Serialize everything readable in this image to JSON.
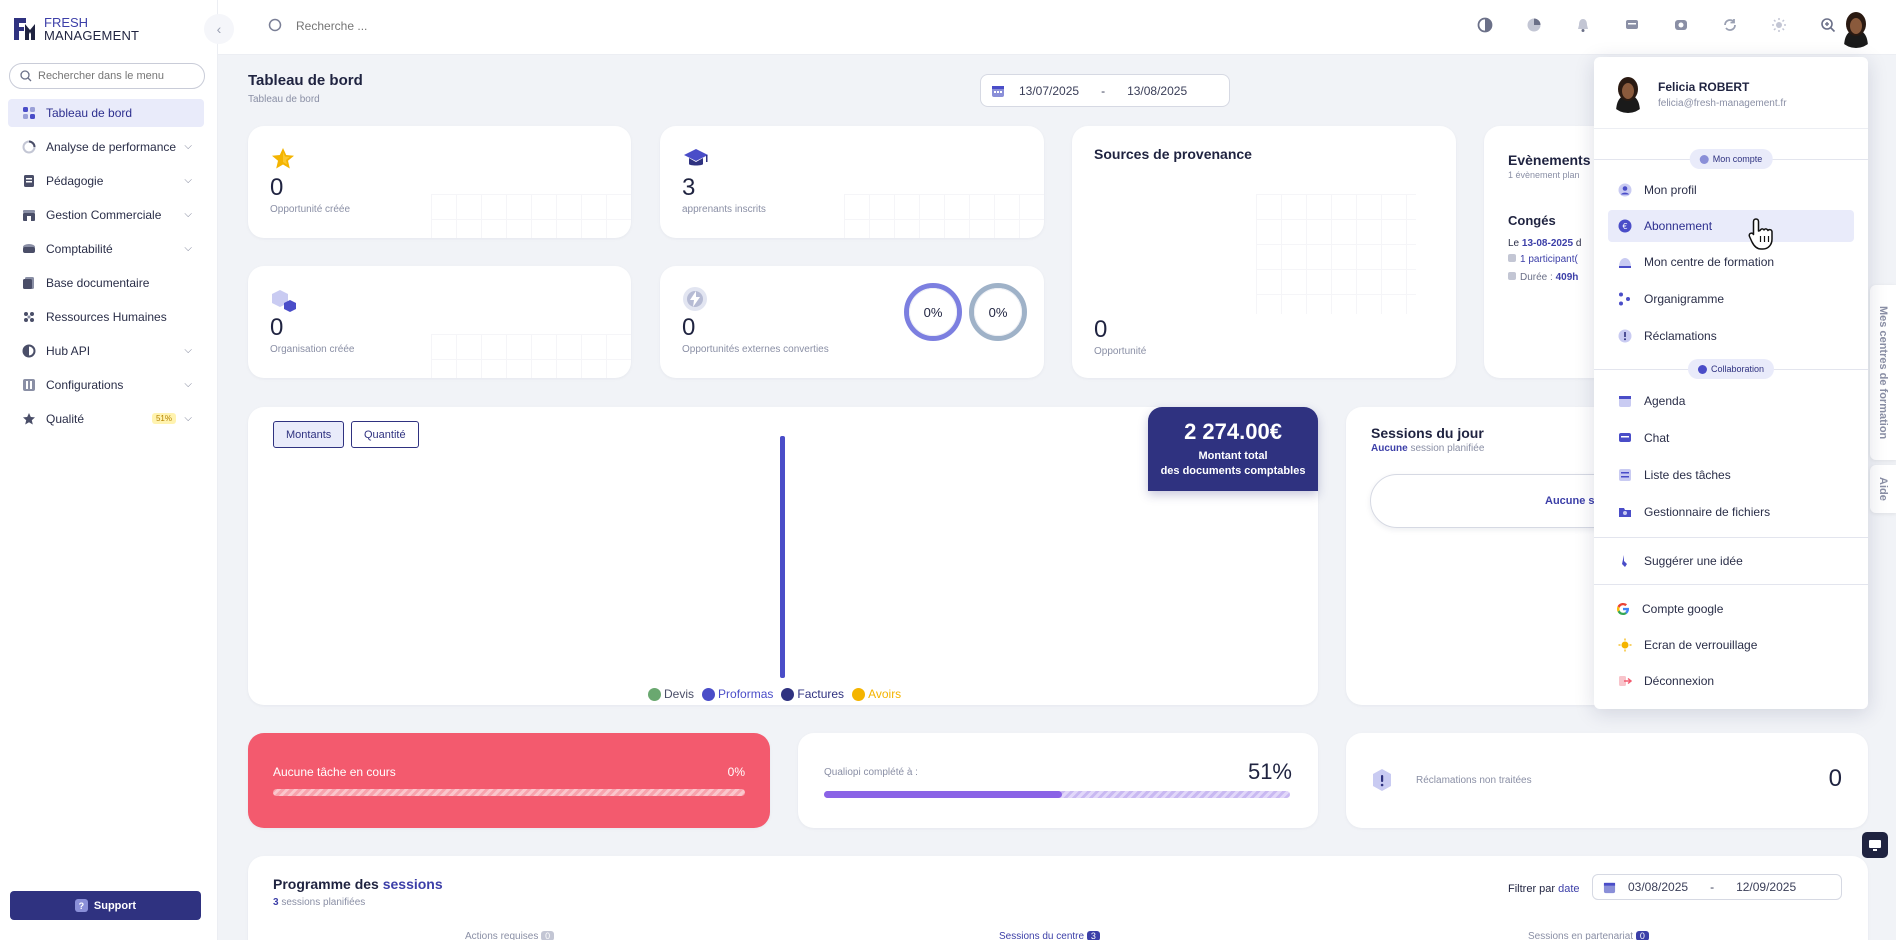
{
  "brand": {
    "fresh": "FRESH",
    "management": "MANAGEMENT"
  },
  "sidebar": {
    "search_placeholder": "Rechercher dans le menu",
    "items": [
      {
        "label": "Tableau de bord",
        "icon": "dashboard-icon",
        "active": true
      },
      {
        "label": "Analyse de performance",
        "icon": "chart-icon",
        "chevron": true
      },
      {
        "label": "Pédagogie",
        "icon": "book-icon",
        "chevron": true
      },
      {
        "label": "Gestion Commerciale",
        "icon": "shop-icon",
        "chevron": true
      },
      {
        "label": "Comptabilité",
        "icon": "wallet-icon",
        "chevron": true
      },
      {
        "label": "Base documentaire",
        "icon": "document-icon"
      },
      {
        "label": "Ressources Humaines",
        "icon": "people-icon"
      },
      {
        "label": "Hub API",
        "icon": "api-icon",
        "chevron": true
      },
      {
        "label": "Configurations",
        "icon": "settings-icon",
        "chevron": true
      },
      {
        "label": "Qualité",
        "icon": "star-icon",
        "chevron": true,
        "badge": "51%"
      }
    ],
    "support_label": "Support"
  },
  "topbar": {
    "search_placeholder": "Recherche ..."
  },
  "header": {
    "title": "Tableau de bord",
    "breadcrumb": "Tableau de bord",
    "date_from": "13/07/2025",
    "date_sep": "-",
    "date_to": "13/08/2025"
  },
  "stats": {
    "opportunites": {
      "value": "0",
      "label": "Opportunité créée"
    },
    "apprenants": {
      "value": "3",
      "label": "apprenants inscrits"
    },
    "organisations": {
      "value": "0",
      "label": "Organisation créée"
    },
    "externes": {
      "value": "0",
      "label": "Opportunités externes converties",
      "ring1": "0%",
      "ring2": "0%"
    },
    "sources": {
      "title": "Sources de provenance",
      "value": "0",
      "label": "Opportunité"
    }
  },
  "events": {
    "title": "Evènements",
    "subtitle": "1 évènement plan",
    "conges_title": "Congés",
    "conges_line_prefix": "Le ",
    "conges_date": "13-08-2025",
    "conges_date_suffix": " d",
    "participants": "1 participant(",
    "duree_label": "Durée : ",
    "duree_value": "409h"
  },
  "chart": {
    "tab_montants": "Montants",
    "tab_quantite": "Quantité",
    "total_amount": "2 274.00€",
    "total_line1": "Montant total",
    "total_line2": "des documents comptables",
    "legend": [
      {
        "name": "Devis",
        "color": "#6aa870"
      },
      {
        "name": "Proformas",
        "color": "#4a4dc8"
      },
      {
        "name": "Factures",
        "color": "#2f3280"
      },
      {
        "name": "Avoirs",
        "color": "#f4b400"
      }
    ]
  },
  "sessions_jour": {
    "title": "Sessions du jour",
    "sub_strong": "Aucune",
    "sub_rest": " session planifiée",
    "empty_label": "Aucune se"
  },
  "taches": {
    "label": "Aucune tâche en cours",
    "percent": "0%",
    "progress": 0
  },
  "qualiopi": {
    "label": "Qualiopi complété à :",
    "percent": "51%",
    "progress": 0.51
  },
  "reclamations": {
    "label": "Réclamations non traitées",
    "count": "0"
  },
  "programme": {
    "title_a": "Programme des ",
    "title_b": "sessions",
    "sub_num": "3",
    "sub_rest": " sessions planifiées",
    "filter_label": "Filtrer par ",
    "filter_link": "date",
    "date_from": "03/08/2025",
    "date_sep": "-",
    "date_to": "12/09/2025",
    "tabs": [
      {
        "label": "Actions requises",
        "count": "0"
      },
      {
        "label": "Sessions du centre",
        "count": "3"
      },
      {
        "label": "Sessions en partenariat",
        "count": "0"
      }
    ]
  },
  "profile": {
    "name": "Felicia ROBERT",
    "email": "felicia@fresh-management.fr",
    "section_account": "Mon compte",
    "section_collab": "Collaboration",
    "items_account": [
      "Mon profil",
      "Abonnement",
      "Mon centre de formation",
      "Organigramme",
      "Réclamations"
    ],
    "items_collab": [
      "Agenda",
      "Chat",
      "Liste des tâches",
      "Gestionnaire de fichiers"
    ],
    "suggest": "Suggérer une idée",
    "google": "Compte google",
    "lock": "Ecran de verrouillage",
    "logout": "Déconnexion"
  },
  "side_tabs": {
    "centres": "Mes centres de formation",
    "aide": "Aide"
  },
  "colors": {
    "primary": "#2f3280",
    "accent": "#4a4dc8",
    "danger": "#f35a6e",
    "progress": "#8a63e6"
  }
}
